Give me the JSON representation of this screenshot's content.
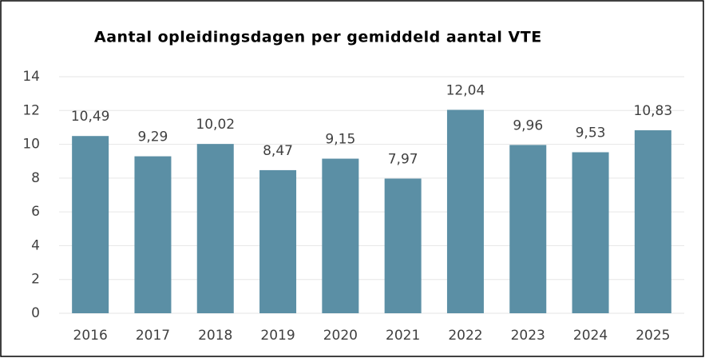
{
  "chart_data": {
    "type": "bar",
    "title": "Aantal opleidingsdagen per gemiddeld aantal VTE",
    "categories": [
      "2016",
      "2017",
      "2018",
      "2019",
      "2020",
      "2021",
      "2022",
      "2023",
      "2024",
      "2025"
    ],
    "values": [
      10.49,
      9.29,
      10.02,
      8.47,
      9.15,
      7.97,
      12.04,
      9.96,
      9.53,
      10.83
    ],
    "value_labels": [
      "10,49",
      "9,29",
      "10,02",
      "8,47",
      "9,15",
      "7,97",
      "12,04",
      "9,96",
      "9,53",
      "10,83"
    ],
    "color": "#5b8fa5",
    "ylim": [
      0,
      14
    ],
    "yticks": [
      0,
      2,
      4,
      6,
      8,
      10,
      12,
      14
    ],
    "grid": true
  }
}
